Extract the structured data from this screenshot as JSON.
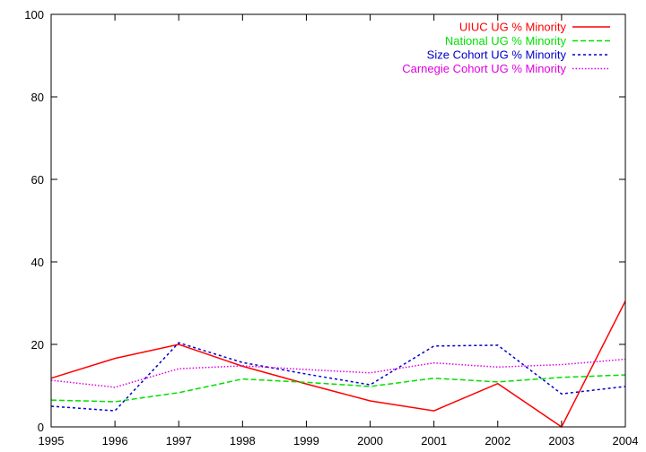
{
  "chart_data": {
    "type": "line",
    "x": [
      1995,
      1996,
      1997,
      1998,
      1999,
      2000,
      2001,
      2002,
      2003,
      2004
    ],
    "xlim": [
      1995,
      2004
    ],
    "ylim": [
      0,
      100
    ],
    "xticks": [
      "1995",
      "1996",
      "1997",
      "1998",
      "1999",
      "2000",
      "2001",
      "2002",
      "2003",
      "2004"
    ],
    "yticks": [
      "0",
      "20",
      "40",
      "60",
      "80",
      "100"
    ],
    "grid": false,
    "legend_position": "top-right",
    "series": [
      {
        "name": "UIUC UG % Minority",
        "color": "#ff0000",
        "dash": "solid",
        "values": [
          11.8,
          16.6,
          20.0,
          14.7,
          10.4,
          6.3,
          3.9,
          10.5,
          0.0,
          30.5
        ]
      },
      {
        "name": "National UG % Minority",
        "color": "#00e000",
        "dash": "dashed",
        "values": [
          6.5,
          6.1,
          8.3,
          11.6,
          10.8,
          9.8,
          11.8,
          10.9,
          12.0,
          12.6
        ]
      },
      {
        "name": "Size Cohort UG % Minority",
        "color": "#0000cc",
        "dash": "dotted",
        "values": [
          5.0,
          3.9,
          20.4,
          15.6,
          12.8,
          10.2,
          19.6,
          19.8,
          8.0,
          9.8
        ]
      },
      {
        "name": "Carnegie Cohort UG % Minority",
        "color": "#e000e0",
        "dash": "fine-dotted",
        "values": [
          11.3,
          9.6,
          14.1,
          14.8,
          13.9,
          13.1,
          15.5,
          14.5,
          15.1,
          16.4
        ]
      }
    ]
  }
}
